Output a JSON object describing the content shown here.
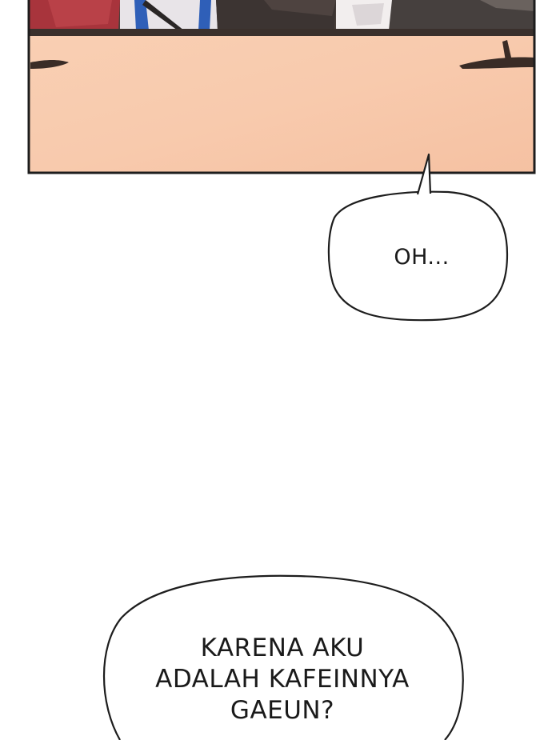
{
  "panel": {
    "skin_color": "#f7c9ab",
    "border_color": "#1d1d1d"
  },
  "bubbles": [
    {
      "id": "oh",
      "lines": [
        "OH..."
      ]
    },
    {
      "id": "karena",
      "lines": [
        "KARENA AKU",
        "ADALAH KAFEINNYA",
        "GAEUN?"
      ]
    }
  ]
}
